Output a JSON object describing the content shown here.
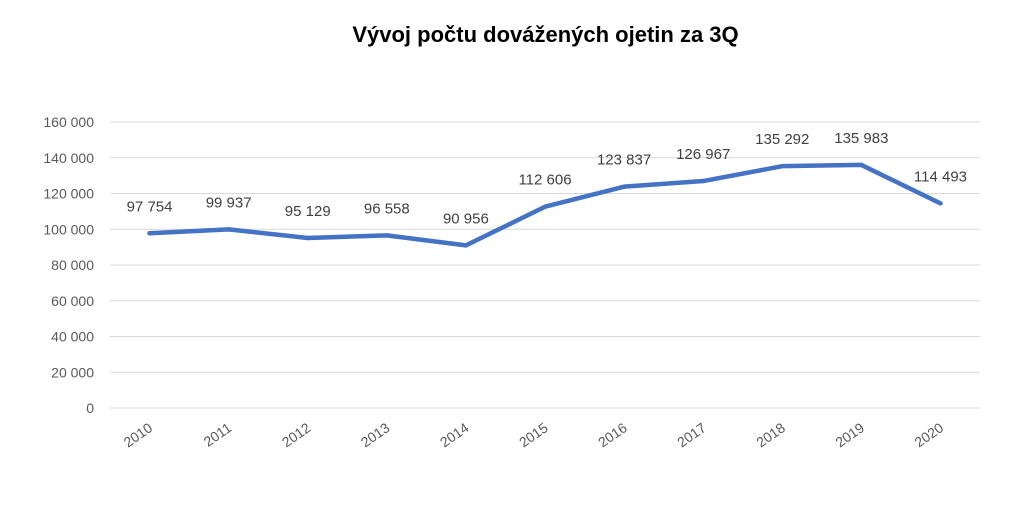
{
  "chart_data": {
    "type": "line",
    "title": "Vývoj počtu dovážených ojetin za 3Q",
    "xlabel": "",
    "ylabel": "",
    "categories": [
      "2010",
      "2011",
      "2012",
      "2013",
      "2014",
      "2015",
      "2016",
      "2017",
      "2018",
      "2019",
      "2020"
    ],
    "series": [
      {
        "values": [
          97754,
          99937,
          95129,
          96558,
          90956,
          112606,
          123837,
          126967,
          135292,
          135983,
          114493
        ],
        "color": "#4472C4"
      }
    ],
    "data_labels": [
      "97 754",
      "99 937",
      "95 129",
      "96 558",
      "90 956",
      "112 606",
      "123 837",
      "126 967",
      "135 292",
      "135 983",
      "114 493"
    ],
    "ylim": [
      0,
      160000
    ],
    "y_ticks": [
      0,
      20000,
      40000,
      60000,
      80000,
      100000,
      120000,
      140000,
      160000
    ],
    "y_tick_labels": [
      "0",
      "20 000",
      "40 000",
      "60 000",
      "80 000",
      "100 000",
      "120 000",
      "140 000",
      "160 000"
    ],
    "grid": true,
    "grid_color": "#D9D9D9",
    "legend": "none"
  }
}
